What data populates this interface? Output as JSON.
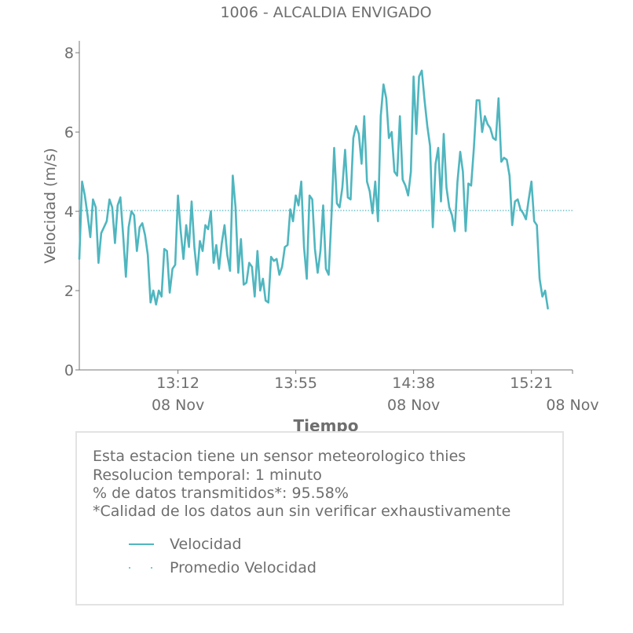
{
  "chart_data": {
    "type": "line",
    "title": "1006 - ALCALDIA ENVIGADO",
    "xlabel": "Tiempo",
    "ylabel": "Velocidad (m/s)",
    "x_ticks": [
      {
        "time": "13:12",
        "date": "08 Nov"
      },
      {
        "time": "13:55",
        "date": ""
      },
      {
        "time": "14:38",
        "date": "08 Nov"
      },
      {
        "time": "15:21",
        "date": ""
      }
    ],
    "x_end_date_label": "08 Nov",
    "xlim": [
      "12:36",
      "15:36"
    ],
    "ylim": [
      0,
      8.3
    ],
    "y_ticks": [
      0,
      2,
      4,
      6,
      8
    ],
    "grid": false,
    "series": [
      {
        "name": "Velocidad",
        "color": "#4fb6bf",
        "style": "solid",
        "times": [
          "12:36",
          "12:37",
          "12:38",
          "12:39",
          "12:40",
          "12:41",
          "12:42",
          "12:43",
          "12:44",
          "12:45",
          "12:46",
          "12:47",
          "12:48",
          "12:49",
          "12:50",
          "12:51",
          "12:52",
          "12:53",
          "12:54",
          "12:55",
          "12:56",
          "12:57",
          "12:58",
          "12:59",
          "13:00",
          "13:01",
          "13:02",
          "13:03",
          "13:04",
          "13:05",
          "13:06",
          "13:07",
          "13:08",
          "13:09",
          "13:10",
          "13:11",
          "13:12",
          "13:13",
          "13:14",
          "13:15",
          "13:16",
          "13:17",
          "13:18",
          "13:19",
          "13:20",
          "13:21",
          "13:22",
          "13:23",
          "13:24",
          "13:25",
          "13:26",
          "13:27",
          "13:28",
          "13:29",
          "13:30",
          "13:31",
          "13:32",
          "13:33",
          "13:34",
          "13:35",
          "13:36",
          "13:37",
          "13:38",
          "13:39",
          "13:40",
          "13:41",
          "13:42",
          "13:43",
          "13:44",
          "13:45",
          "13:46",
          "13:47",
          "13:48",
          "13:49",
          "13:50",
          "13:51",
          "13:52",
          "13:53",
          "13:54",
          "13:55",
          "13:56",
          "13:57",
          "13:58",
          "13:59",
          "14:00",
          "14:01",
          "14:02",
          "14:03",
          "14:04",
          "14:05",
          "14:06",
          "14:07",
          "14:08",
          "14:09",
          "14:10",
          "14:11",
          "14:12",
          "14:13",
          "14:14",
          "14:15",
          "14:16",
          "14:17",
          "14:18",
          "14:19",
          "14:20",
          "14:21",
          "14:22",
          "14:23",
          "14:24",
          "14:25",
          "14:26",
          "14:27",
          "14:28",
          "14:29",
          "14:30",
          "14:31",
          "14:32",
          "14:33",
          "14:34",
          "14:35",
          "14:36",
          "14:37",
          "14:38",
          "14:39",
          "14:40",
          "14:41",
          "14:42",
          "14:43",
          "14:44",
          "14:45",
          "14:46",
          "14:47",
          "14:48",
          "14:49",
          "14:50",
          "14:51",
          "14:52",
          "14:53",
          "14:54",
          "14:55",
          "14:56",
          "14:57",
          "14:58",
          "14:59",
          "15:00",
          "15:01",
          "15:02",
          "15:03",
          "15:04",
          "15:05",
          "15:06",
          "15:07",
          "15:08",
          "15:09",
          "15:10",
          "15:11",
          "15:12",
          "15:13",
          "15:14",
          "15:15",
          "15:16",
          "15:17",
          "15:18",
          "15:19",
          "15:20",
          "15:21",
          "15:22",
          "15:23",
          "15:24",
          "15:25",
          "15:26",
          "15:27"
        ],
        "values": [
          2.8,
          4.75,
          4.4,
          3.9,
          3.35,
          4.3,
          4.1,
          2.7,
          3.45,
          3.6,
          3.75,
          4.3,
          4.1,
          3.2,
          4.15,
          4.35,
          3.4,
          2.35,
          3.6,
          4.0,
          3.9,
          3.0,
          3.6,
          3.7,
          3.4,
          2.9,
          1.7,
          2.0,
          1.65,
          2.0,
          1.85,
          3.05,
          3.0,
          1.95,
          2.55,
          2.65,
          4.4,
          3.5,
          2.8,
          3.65,
          3.1,
          4.25,
          3.1,
          2.4,
          3.25,
          3.0,
          3.65,
          3.55,
          4.0,
          2.7,
          3.15,
          2.55,
          3.2,
          3.65,
          2.9,
          2.5,
          4.9,
          4.1,
          2.45,
          3.3,
          2.15,
          2.2,
          2.7,
          2.6,
          1.85,
          3.0,
          2.0,
          2.3,
          1.75,
          1.7,
          2.85,
          2.75,
          2.8,
          2.4,
          2.6,
          3.1,
          3.15,
          4.05,
          3.75,
          4.4,
          4.15,
          4.75,
          3.1,
          2.3,
          4.4,
          4.3,
          3.05,
          2.45,
          3.0,
          4.15,
          2.55,
          2.4,
          3.85,
          5.6,
          4.2,
          4.1,
          4.6,
          5.55,
          4.35,
          4.3,
          5.85,
          6.15,
          5.95,
          5.2,
          6.4,
          4.75,
          4.5,
          3.95,
          4.75,
          3.75,
          6.4,
          7.2,
          6.85,
          5.85,
          6.0,
          5.0,
          4.9,
          6.4,
          4.8,
          4.65,
          4.4,
          5.0,
          7.4,
          5.95,
          7.4,
          7.55,
          6.8,
          6.15,
          5.65,
          3.6,
          5.2,
          5.6,
          4.25,
          5.95,
          4.6,
          4.1,
          3.9,
          3.5,
          4.75,
          5.5,
          5.0,
          3.5,
          4.7,
          4.65,
          5.6,
          6.8,
          6.8,
          6.0,
          6.4,
          6.2,
          6.1,
          5.85,
          5.8,
          6.85,
          5.25,
          5.35,
          5.3,
          4.9,
          3.65,
          4.25,
          4.3,
          4.05,
          3.95,
          3.8,
          4.3,
          4.75,
          3.75,
          3.65,
          2.3,
          1.85,
          2.0,
          1.55
        ]
      },
      {
        "name": "Promedio Velocidad",
        "color": "#4fb6bf",
        "style": "dotted",
        "value": 4.02
      }
    ]
  },
  "info": {
    "lines": [
      "Esta estacion tiene un sensor meteorologico thies",
      "Resolucion temporal: 1 minuto",
      "% de datos transmitidos*: 95.58%",
      "*Calidad de los datos aun sin verificar exhaustivamente"
    ],
    "legend": [
      {
        "label": "Velocidad",
        "style": "solid"
      },
      {
        "label": "Promedio Velocidad",
        "style": "dotted"
      }
    ]
  }
}
